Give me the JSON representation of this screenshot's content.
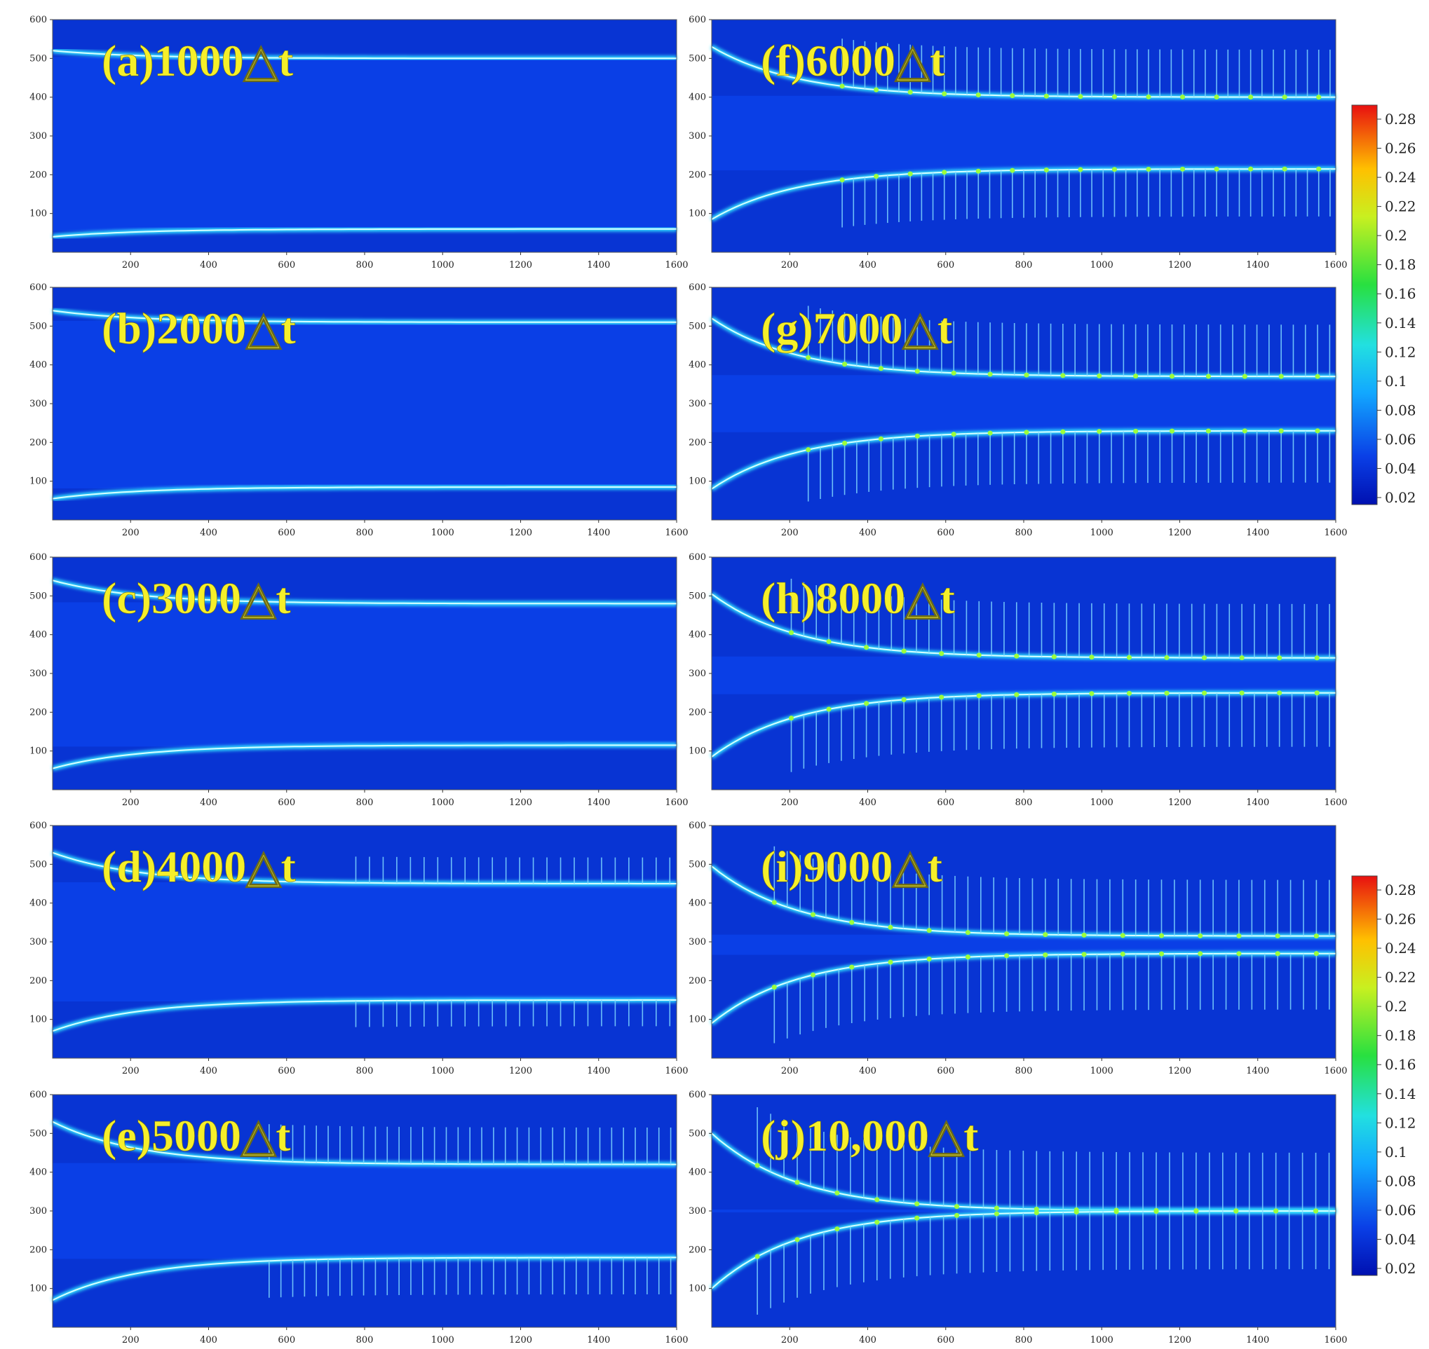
{
  "figure": {
    "panels": [
      {
        "label": "(a)1000△t",
        "top": 500,
        "bottom": 60,
        "fingers": 0,
        "droop": 20
      },
      {
        "label": "(b)2000△t",
        "top": 510,
        "bottom": 85,
        "fingers": 0,
        "droop": 30
      },
      {
        "label": "(c)3000△t",
        "top": 480,
        "bottom": 115,
        "fingers": 0,
        "droop": 60
      },
      {
        "label": "(d)4000△t",
        "top": 450,
        "bottom": 150,
        "fingers": 0.25,
        "droop": 80
      },
      {
        "label": "(e)5000△t",
        "top": 420,
        "bottom": 180,
        "fingers": 0.5,
        "droop": 110
      },
      {
        "label": "(f)6000△t",
        "top": 400,
        "bottom": 215,
        "fingers": 0.75,
        "droop": 130
      },
      {
        "label": "(g)7000△t",
        "top": 370,
        "bottom": 230,
        "fingers": 0.85,
        "droop": 150
      },
      {
        "label": "(h)8000△t",
        "top": 340,
        "bottom": 250,
        "fingers": 0.9,
        "droop": 165
      },
      {
        "label": "(i)9000△t",
        "top": 315,
        "bottom": 270,
        "fingers": 0.95,
        "droop": 180
      },
      {
        "label": "(j)10,000△t",
        "top": 300,
        "bottom": 300,
        "fingers": 1.0,
        "droop": 200
      }
    ],
    "y_ticks": [
      "600",
      "500",
      "400",
      "300",
      "200",
      "100"
    ],
    "x_ticks": [
      "200",
      "400",
      "600",
      "800",
      "1000",
      "1200",
      "1400",
      "1600"
    ],
    "colorbar_ticks": [
      "0.28",
      "0.26",
      "0.24",
      "0.22",
      "0.2",
      "0.18",
      "0.16",
      "0.14",
      "0.12",
      "0.1",
      "0.08",
      "0.06",
      "0.04",
      "0.02"
    ],
    "colors": {
      "field": "#0a3fe6",
      "field_dark": "#0520b0",
      "interface": "#33e0ff",
      "finger": "#7fd8ff",
      "node": "#9cff3a",
      "label_fill": "#f5ef2a"
    }
  }
}
